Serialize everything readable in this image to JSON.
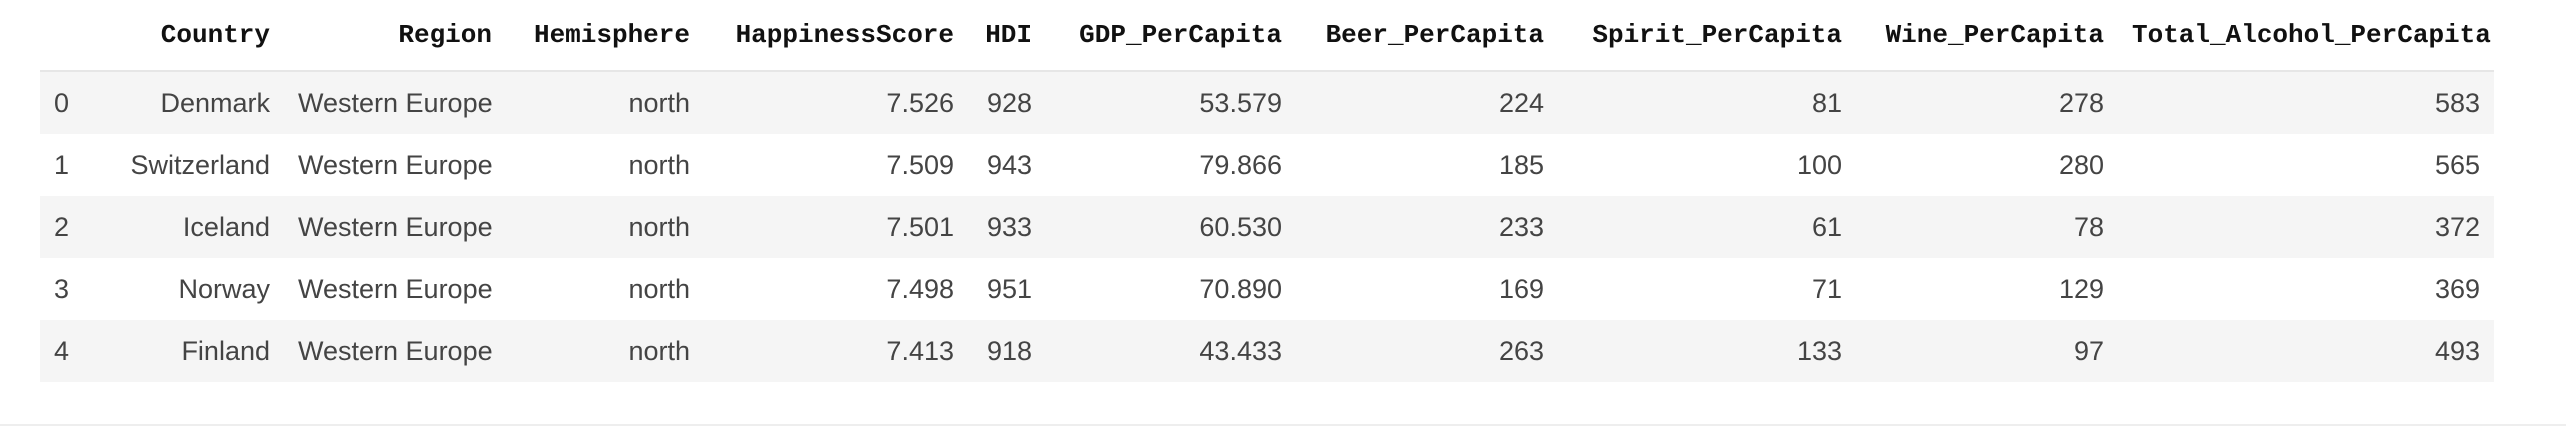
{
  "table": {
    "columns": [
      "",
      "Country",
      "Region",
      "Hemisphere",
      "HappinessScore",
      "HDI",
      "GDP_PerCapita",
      "Beer_PerCapita",
      "Spirit_PerCapita",
      "Wine_PerCapita",
      "Total_Alcohol_PerCapita"
    ],
    "rows": [
      [
        "0",
        "Denmark",
        "Western Europe",
        "north",
        "7.526",
        "928",
        "53.579",
        "224",
        "81",
        "278",
        "583"
      ],
      [
        "1",
        "Switzerland",
        "Western Europe",
        "north",
        "7.509",
        "943",
        "79.866",
        "185",
        "100",
        "280",
        "565"
      ],
      [
        "2",
        "Iceland",
        "Western Europe",
        "north",
        "7.501",
        "933",
        "60.530",
        "233",
        "61",
        "78",
        "372"
      ],
      [
        "3",
        "Norway",
        "Western Europe",
        "north",
        "7.498",
        "951",
        "70.890",
        "169",
        "71",
        "129",
        "369"
      ],
      [
        "4",
        "Finland",
        "Western Europe",
        "north",
        "7.413",
        "918",
        "43.433",
        "263",
        "133",
        "97",
        "493"
      ]
    ]
  }
}
